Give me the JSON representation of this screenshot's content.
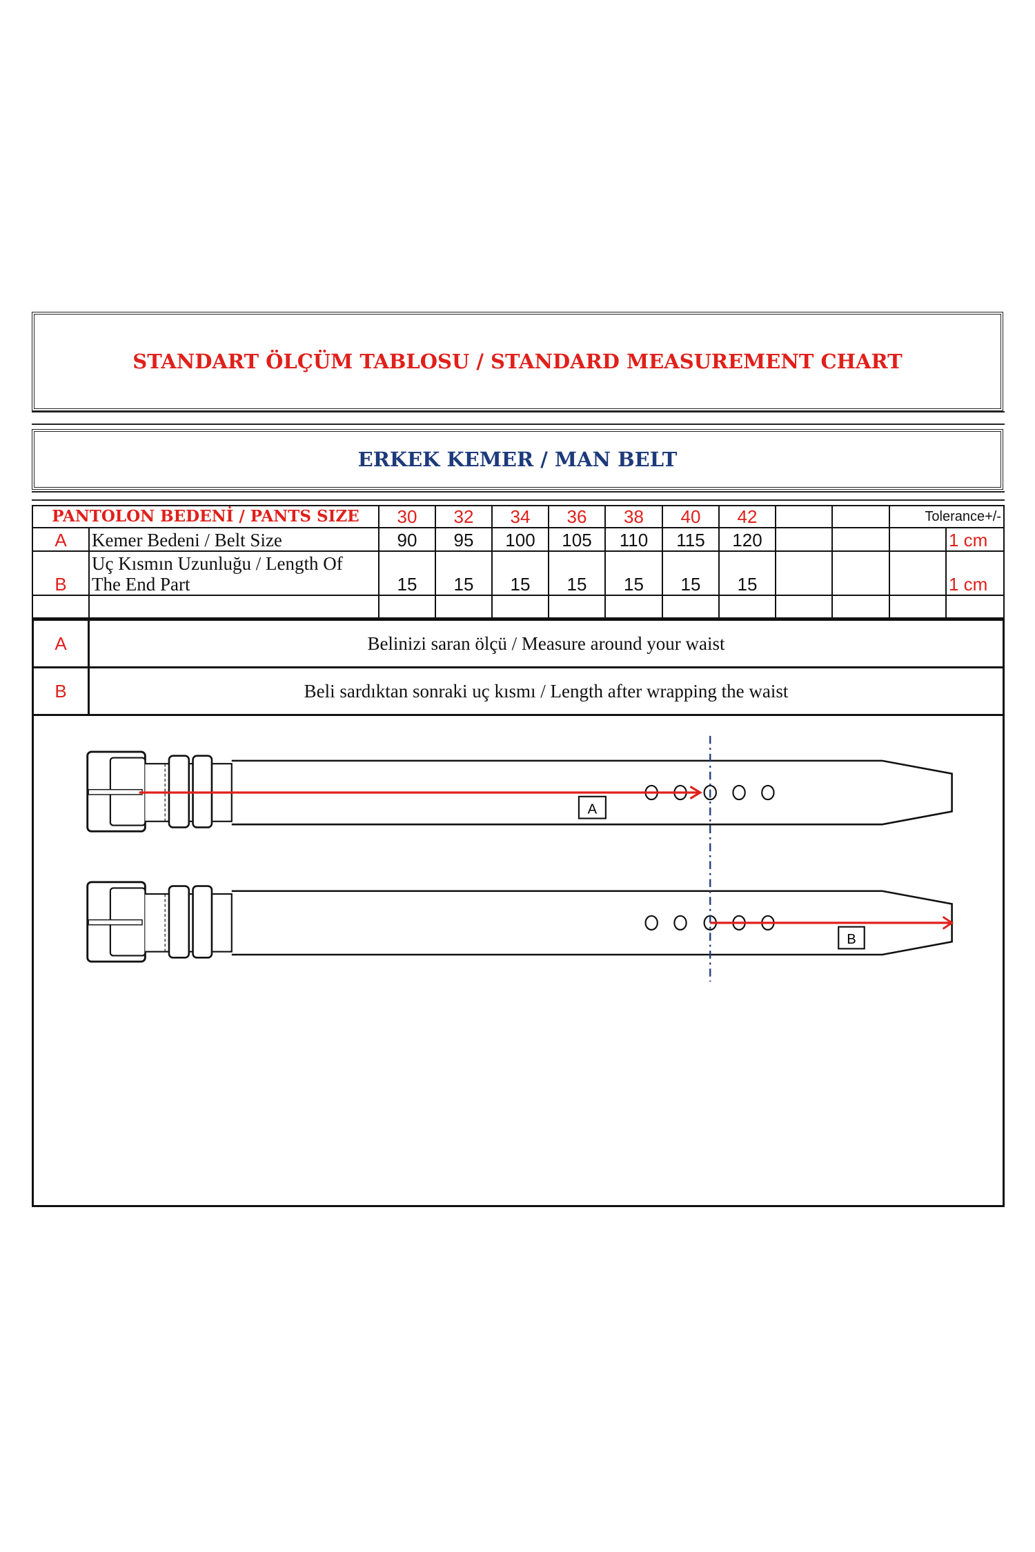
{
  "title": "STANDART ÖLÇÜM TABLOSU / STANDARD MEASUREMENT CHART",
  "subtitle": "ERKEK KEMER / MAN BELT",
  "colors": {
    "title": "#e0201b",
    "subtitle": "#1d3a7a",
    "arrow": "#e0201b",
    "guide_line": "#1d3a7a"
  },
  "table": {
    "header_label": "PANTOLON BEDENİ / PANTS SIZE",
    "sizes": [
      "30",
      "32",
      "34",
      "36",
      "38",
      "40",
      "42"
    ],
    "tolerance_label": "Tolerance+/-",
    "rows": [
      {
        "code": "A",
        "label": "Kemer Bedeni / Belt Size",
        "values": [
          "90",
          "95",
          "100",
          "105",
          "110",
          "115",
          "120"
        ],
        "tolerance": "1 cm"
      },
      {
        "code": "B",
        "label_line1": "Uç Kısmın Uzunluğu / Length Of",
        "label_line2": "The End Part",
        "values": [
          "15",
          "15",
          "15",
          "15",
          "15",
          "15",
          "15"
        ],
        "tolerance": "1 cm"
      }
    ]
  },
  "descriptions": [
    {
      "code": "A",
      "text": "Belinizi saran ölçü / Measure around your waist"
    },
    {
      "code": "B",
      "text": "Beli sardıktan sonraki uç kısmı / Length after wrapping the waist"
    }
  ],
  "diagram": {
    "label_a": "A",
    "label_b": "B"
  }
}
